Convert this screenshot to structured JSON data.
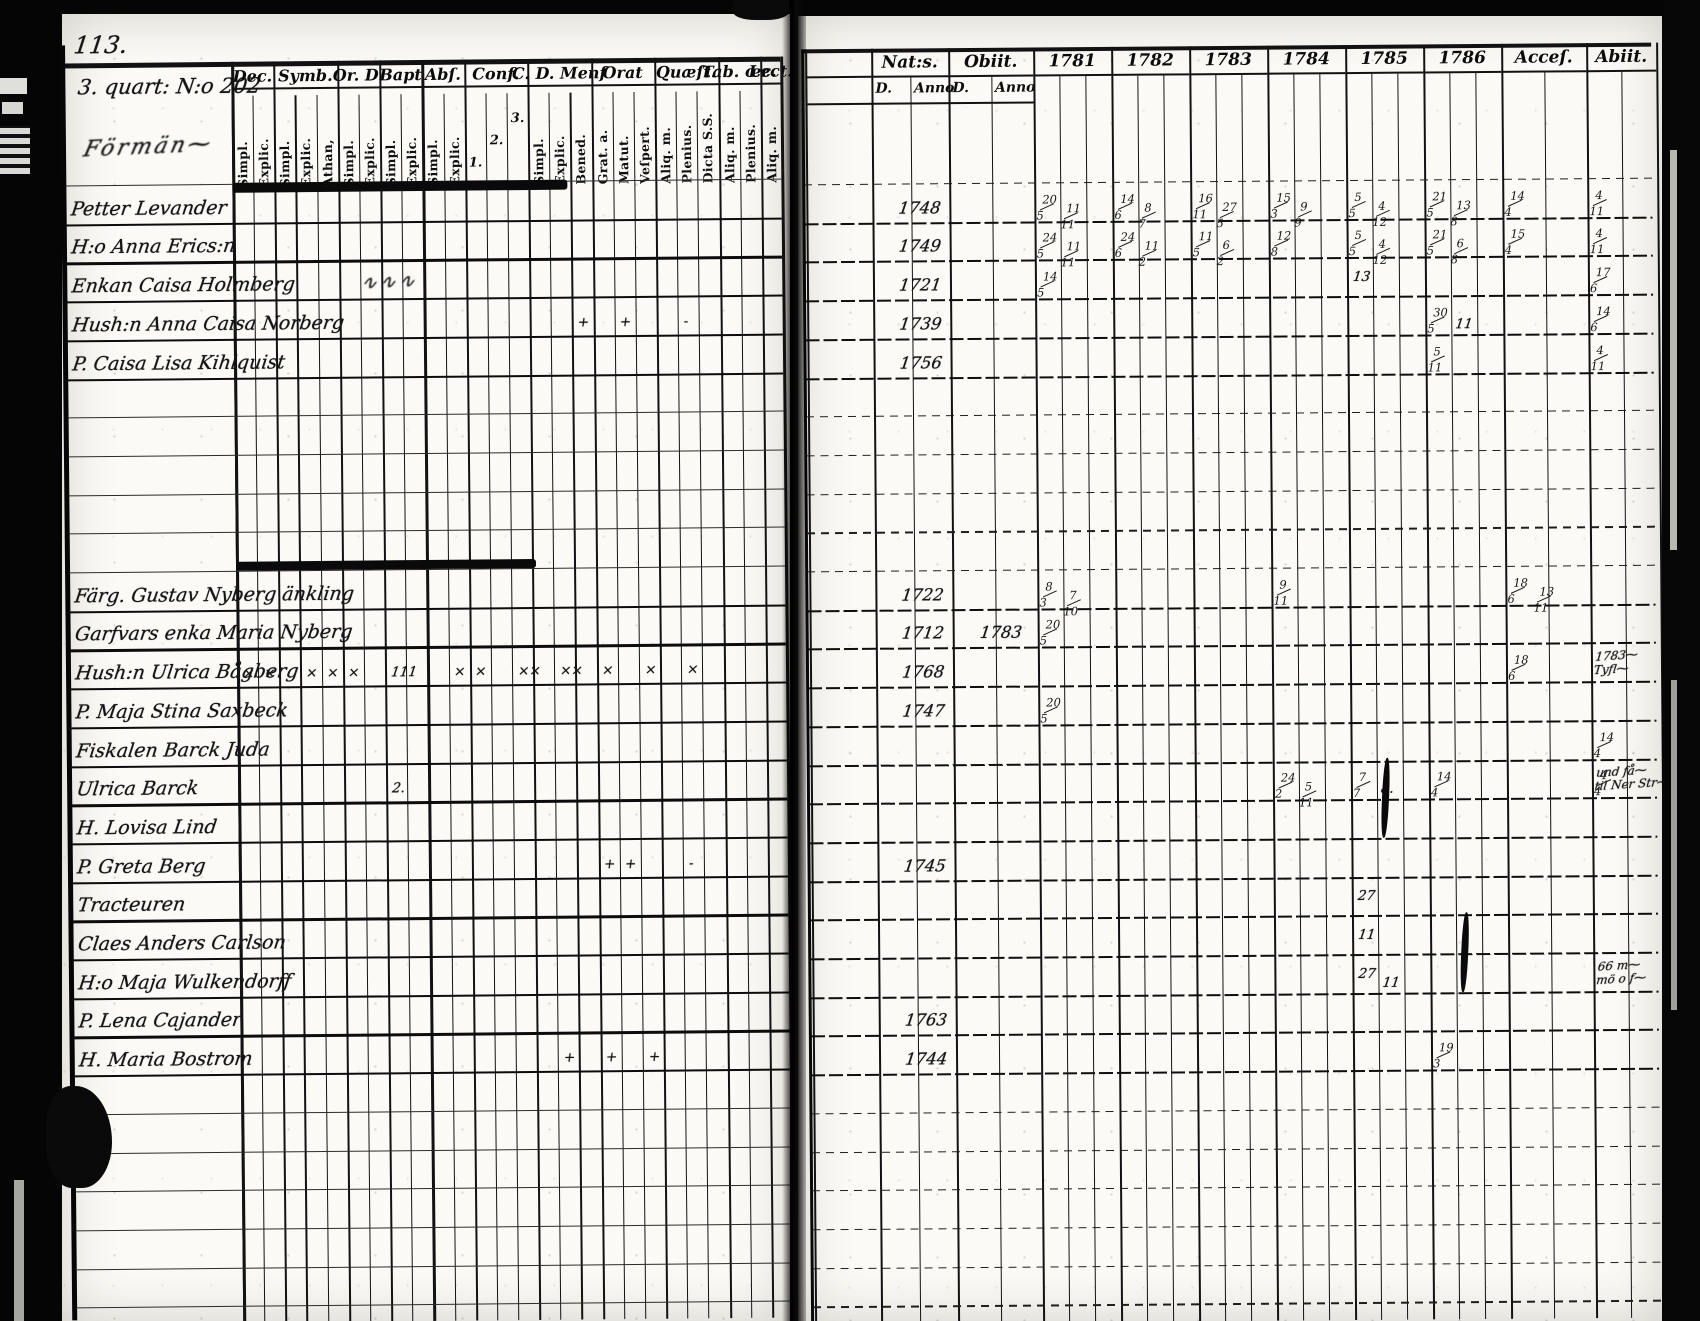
{
  "page_number": "113.",
  "left_page": {
    "hand_title": "3. quart: N:o 202",
    "section_scribble": "Förmän⁓",
    "columns": [
      {
        "label": "Dec.",
        "subs": [
          "Simpl.",
          "Explic."
        ]
      },
      {
        "label": "Symb.",
        "subs": [
          "Simpl.",
          "Explic.",
          "Athan,"
        ]
      },
      {
        "label": "Or. D.",
        "subs": [
          "Simpl.",
          "Explic."
        ]
      },
      {
        "label": "Bapt",
        "subs": [
          "Simpl.",
          "Explic."
        ]
      },
      {
        "label": "Abſ.",
        "subs": [
          "Simpl.",
          "Explic."
        ]
      },
      {
        "label": "Conf.",
        "subs": [
          "1.",
          "2.",
          "3."
        ]
      },
      {
        "label": "C. D. Menſ",
        "subs": [
          "Simpl.",
          "Explic.",
          "Bened."
        ]
      },
      {
        "label": "Orat",
        "subs": [
          "Grat. a.",
          "Matut.",
          "Veſpert."
        ]
      },
      {
        "label": "Quæſt.",
        "subs": [
          "Aliq. m.",
          "Plenius.",
          "Dicta S.S."
        ]
      },
      {
        "label": "Tab. œc.",
        "subs": [
          "Aliq. m.",
          "Plenius."
        ]
      },
      {
        "label": "Lect.",
        "subs": [
          "Aliq. m."
        ]
      }
    ]
  },
  "right_page": {
    "columns": [
      {
        "label": "",
        "subs": [
          ""
        ]
      },
      {
        "label": "Nat:s.",
        "subs": [
          "D.",
          "Anno"
        ]
      },
      {
        "label": "Obiit.",
        "subs": [
          "D.",
          "Anno"
        ]
      },
      {
        "label": "1781",
        "subs": [
          "",
          "",
          ""
        ]
      },
      {
        "label": "1782",
        "subs": [
          "",
          "",
          ""
        ]
      },
      {
        "label": "1783",
        "subs": [
          "",
          "",
          ""
        ]
      },
      {
        "label": "1784",
        "subs": [
          "",
          "",
          ""
        ]
      },
      {
        "label": "1785",
        "subs": [
          "",
          "",
          ""
        ]
      },
      {
        "label": "1786",
        "subs": [
          "",
          "",
          ""
        ]
      },
      {
        "label": "Acceſ.",
        "subs": [
          "",
          ""
        ]
      },
      {
        "label": "Abiit.",
        "subs": [
          "",
          ""
        ]
      }
    ]
  },
  "records": [
    {
      "row": 1,
      "name": "Petter Levander",
      "nat": "1748",
      "marks": {
        "1781": [
          "20/5",
          "11/11"
        ],
        "1782": [
          "14/6",
          "8/7"
        ],
        "1783": [
          "16/11",
          "27/5"
        ],
        "1784": [
          "15/3",
          "9/9"
        ],
        "1785": [
          "5/5",
          "4/12"
        ],
        "1786": [
          "21/5",
          "13/8"
        ],
        "Acceſ.": [
          "14/4"
        ],
        "Abiit.": [
          "4/11"
        ]
      }
    },
    {
      "row": 2,
      "name": "H:o Anna Erics:n",
      "nat": "1749",
      "marks": {
        "1781": [
          "24/5",
          "11/11"
        ],
        "1782": [
          "24/6",
          "11/2"
        ],
        "1783": [
          "11/5",
          "6/2"
        ],
        "1784": [
          "12/8"
        ],
        "1785": [
          "5/5",
          "4/12"
        ],
        "1786": [
          "21/5",
          "6/8"
        ],
        "Acceſ.": [
          "15/4"
        ],
        "Abiit.": [
          "4/11"
        ]
      }
    },
    {
      "row": 3,
      "name": "Enkan Caisa Holmberg",
      "name_suffix_scribble": "∿∿∿",
      "nat": "1721",
      "marks": {
        "1781": [
          "14/5"
        ],
        "1785": [
          "13"
        ],
        "Abiit.": [
          "17/6"
        ]
      }
    },
    {
      "row": 4,
      "name": "Hush:n Anna Caisa Norberg",
      "nat": "1739",
      "left_marks": [
        {
          "col": 16,
          "text": "+"
        },
        {
          "col": 18,
          "text": "+"
        },
        {
          "col": 21,
          "text": "-"
        }
      ],
      "marks": {
        "1786": [
          "30/5",
          "11"
        ],
        "Abiit.": [
          "14/6"
        ]
      }
    },
    {
      "row": 5,
      "name": "P. Caisa Lisa Kihlquist",
      "nat": "1756",
      "marks": {
        "1786": [
          "5/11"
        ],
        "Abiit.": [
          "4/11"
        ]
      }
    },
    {
      "row": 11,
      "name": "Färg. Gustav Nyberg änkling",
      "nat": "1722",
      "marks": {
        "1781": [
          "8/3",
          "7/10"
        ],
        "1784": [
          "9/11"
        ],
        "Acceſ.": [
          "18/6",
          "13/11"
        ]
      }
    },
    {
      "row": 12,
      "name": "Garfvars enka Maria Nyberg",
      "nat": "1712",
      "obiit": "1783",
      "marks": {
        "1781": [
          "20/5"
        ]
      }
    },
    {
      "row": 13,
      "name": "Hush:n Ulrica Bågberg",
      "nat": "1768",
      "left_marks": [
        {
          "col": 0,
          "text": "×"
        },
        {
          "col": 1,
          "text": "×"
        },
        {
          "col": 3,
          "text": "×"
        },
        {
          "col": 4,
          "text": "×"
        },
        {
          "col": 5,
          "text": "×"
        },
        {
          "col": 7,
          "text": "111"
        },
        {
          "col": 10,
          "text": "×"
        },
        {
          "col": 11,
          "text": "×"
        },
        {
          "col": 13,
          "text": "××"
        },
        {
          "col": 15,
          "text": "××"
        },
        {
          "col": 17,
          "text": "×"
        },
        {
          "col": 19,
          "text": "×"
        },
        {
          "col": 21,
          "text": "×"
        }
      ],
      "marks": {
        "Acceſ.": [
          "18/6"
        ]
      },
      "note": [
        "1783⁓",
        "Tyfl⁓"
      ]
    },
    {
      "row": 14,
      "name": "P. Maja Stina Saxbeck",
      "nat": "1747",
      "marks": {
        "1781": [
          "20/5"
        ]
      }
    },
    {
      "row": 15,
      "name": "Fiskalen Barck Juda",
      "marks": {
        "Abiit.": [
          "14/4"
        ]
      }
    },
    {
      "row": 16,
      "name": "Ulrica Barck",
      "left_marks": [
        {
          "col": 7,
          "text": "2."
        }
      ],
      "marks": {
        "1784": [
          "24/2",
          "5/11"
        ],
        "1785": [
          "7/7",
          "8."
        ],
        "1786": [
          "14/4"
        ],
        "Abiit.": [
          "4/4"
        ]
      },
      "note": [
        "und få⁓",
        "til Ner Str⁓"
      ]
    },
    {
      "row": 17,
      "name": "H. Lovisa Lind",
      "blots": [
        "1785"
      ]
    },
    {
      "row": 18,
      "name": "P. Greta Berg",
      "nat": "1745",
      "left_marks": [
        {
          "col": 17,
          "text": "+"
        },
        {
          "col": 18,
          "text": "+"
        },
        {
          "col": 21,
          "text": "-"
        }
      ]
    },
    {
      "row": 19,
      "name": "Tracteuren",
      "marks": {
        "1785": [
          "27"
        ]
      }
    },
    {
      "row": 20,
      "name": "Claes Anders Carlson",
      "marks": {
        "1785": [
          "11"
        ]
      }
    },
    {
      "row": 21,
      "name": "H:o Maja Wulkendorff",
      "blots": [
        "1786"
      ],
      "marks": {
        "1785": [
          "27",
          "11"
        ]
      },
      "note": [
        "66 m⁓",
        "mö o f⁓"
      ]
    },
    {
      "row": 22,
      "name": "P. Lena Cajander",
      "nat": "1763"
    },
    {
      "row": 23,
      "name": "H. Maria Bostrom",
      "nat": "1744",
      "left_marks": [
        {
          "col": 15,
          "text": "+"
        },
        {
          "col": 17,
          "text": "+"
        },
        {
          "col": 19,
          "text": "+"
        }
      ],
      "marks": {
        "1786": [
          "19/3"
        ]
      }
    }
  ]
}
